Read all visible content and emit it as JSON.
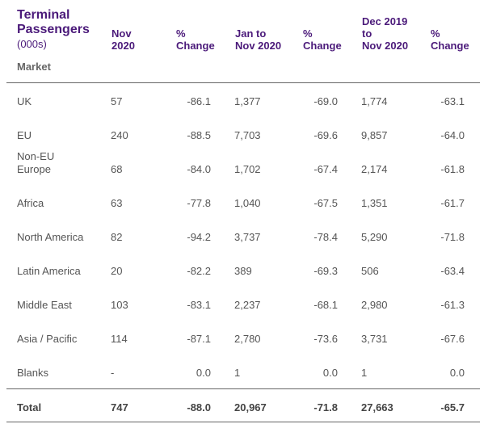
{
  "title": {
    "line1": "Terminal",
    "line2": "Passengers",
    "unit": "(000s)"
  },
  "columns": {
    "nov_line1": "Nov",
    "nov_line2": "2020",
    "chg1_line1": "%",
    "chg1_line2": "Change",
    "jan_line1": "Jan to",
    "jan_line2": "Nov 2020",
    "chg2_line1": "%",
    "chg2_line2": "Change",
    "dec_line1": "Dec 2019",
    "dec_line2": "to",
    "dec_line3": "Nov 2020",
    "chg3_line1": "%",
    "chg3_line2": "Change"
  },
  "market_label": "Market",
  "rows": [
    {
      "market": "UK",
      "nov": "57",
      "chg1": "-86.1",
      "ytd": "1,377",
      "chg2": "-69.0",
      "r12": "1,774",
      "chg3": "-63.1"
    },
    {
      "market": "EU",
      "nov": "240",
      "chg1": "-88.5",
      "ytd": "7,703",
      "chg2": "-69.6",
      "r12": "9,857",
      "chg3": "-64.0"
    },
    {
      "market": "Non-EU",
      "market2": "Europe",
      "nov": "68",
      "chg1": "-84.0",
      "ytd": "1,702",
      "chg2": "-67.4",
      "r12": "2,174",
      "chg3": "-61.8"
    },
    {
      "market": "Africa",
      "nov": "63",
      "chg1": "-77.8",
      "ytd": "1,040",
      "chg2": "-67.5",
      "r12": "1,351",
      "chg3": "-61.7"
    },
    {
      "market": "North America",
      "nov": "82",
      "chg1": "-94.2",
      "ytd": "3,737",
      "chg2": "-78.4",
      "r12": "5,290",
      "chg3": "-71.8"
    },
    {
      "market": "Latin America",
      "nov": "20",
      "chg1": "-82.2",
      "ytd": "389",
      "chg2": "-69.3",
      "r12": "506",
      "chg3": "-63.4"
    },
    {
      "market": "Middle East",
      "nov": "103",
      "chg1": "-83.1",
      "ytd": "2,237",
      "chg2": "-68.1",
      "r12": "2,980",
      "chg3": "-61.3"
    },
    {
      "market": "Asia / Pacific",
      "nov": "114",
      "chg1": "-87.1",
      "ytd": "2,780",
      "chg2": "-73.6",
      "r12": "3,731",
      "chg3": "-67.6"
    },
    {
      "market": "Blanks",
      "nov": "-",
      "chg1": "0.0",
      "ytd": "1",
      "chg2": "0.0",
      "r12": "1",
      "chg3": "0.0"
    }
  ],
  "total": {
    "market": "Total",
    "nov": "747",
    "chg1": "-88.0",
    "ytd": "20,967",
    "chg2": "-71.8",
    "r12": "27,663",
    "chg3": "-65.7"
  }
}
